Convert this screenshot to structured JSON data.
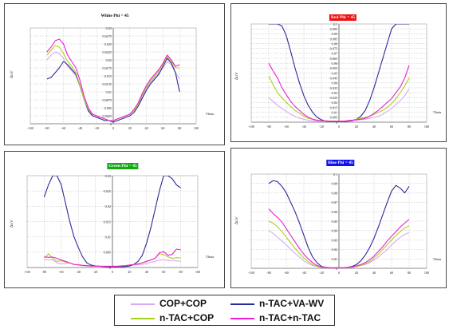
{
  "colors": {
    "COP+COP": "#d9a8f2",
    "n-TAC+VA-WV": "#2b2b96",
    "n-TAC+COP": "#a8d21c",
    "n-TAC+n-TAC": "#ee1fd2"
  },
  "legend": {
    "items": [
      {
        "label": "COP+COP",
        "color": "#d9a8f2"
      },
      {
        "label": "n-TAC+VA-WV",
        "color": "#2b2b96"
      },
      {
        "label": "n-TAC+COP",
        "color": "#a8d21c"
      },
      {
        "label": "n-TAC+n-TAC",
        "color": "#ee1fd2"
      }
    ]
  },
  "chart_data": [
    {
      "type": "line",
      "title": "White Phi = 45",
      "title_bg": "#ffffff",
      "title_color": "#000000",
      "xlabel": "Theta",
      "ylabel": "Δu'v'",
      "xlim": [
        -100,
        100
      ],
      "ylim": [
        0,
        0.03
      ],
      "xticks": [
        "-100",
        "-80",
        "-60",
        "-40",
        "-20",
        "0",
        "20",
        "40",
        "60",
        "80",
        "100"
      ],
      "yticks": [
        "0",
        "0.0025",
        "0.005",
        "0.0075",
        "0.01",
        "0.0125",
        "0.015",
        "0.0175",
        "0.02",
        "0.0225",
        "0.025",
        "0.0275",
        "0.03"
      ],
      "grid": true,
      "x": [
        -80,
        -75,
        -70,
        -65,
        -60,
        -55,
        -50,
        -45,
        -40,
        -35,
        -30,
        -25,
        -20,
        -15,
        -10,
        -5,
        0,
        5,
        10,
        15,
        20,
        25,
        30,
        35,
        40,
        45,
        50,
        55,
        60,
        65,
        70,
        75,
        80
      ],
      "series": [
        {
          "name": "COP+COP",
          "values": [
            0.02,
            0.0215,
            0.0225,
            0.022,
            0.0205,
            0.018,
            0.0165,
            0.015,
            0.0115,
            0.0075,
            0.004,
            0.0025,
            0.002,
            0.002,
            0.0015,
            0.001,
            0.001,
            0.0015,
            0.002,
            0.0025,
            0.003,
            0.004,
            0.006,
            0.0085,
            0.011,
            0.013,
            0.0145,
            0.016,
            0.0175,
            0.0195,
            0.0185,
            0.016,
            0.014
          ]
        },
        {
          "name": "n-TAC+VA-WV",
          "values": [
            0.014,
            0.0145,
            0.016,
            0.0175,
            0.0195,
            0.0185,
            0.017,
            0.0155,
            0.012,
            0.0075,
            0.004,
            0.0025,
            0.002,
            0.0015,
            0.001,
            0.001,
            0.0005,
            0.001,
            0.0015,
            0.002,
            0.0025,
            0.0035,
            0.0055,
            0.008,
            0.0105,
            0.0125,
            0.014,
            0.0155,
            0.018,
            0.0205,
            0.019,
            0.016,
            0.01
          ]
        },
        {
          "name": "n-TAC+COP",
          "values": [
            0.0215,
            0.023,
            0.0245,
            0.024,
            0.022,
            0.0195,
            0.018,
            0.016,
            0.012,
            0.0075,
            0.0045,
            0.003,
            0.0025,
            0.002,
            0.0015,
            0.001,
            0.001,
            0.0015,
            0.002,
            0.0025,
            0.003,
            0.004,
            0.006,
            0.009,
            0.0115,
            0.0135,
            0.015,
            0.0165,
            0.0185,
            0.021,
            0.0195,
            0.0175,
            0.0175
          ]
        },
        {
          "name": "n-TAC+n-TAC",
          "values": [
            0.0225,
            0.024,
            0.026,
            0.0265,
            0.025,
            0.0215,
            0.0195,
            0.0175,
            0.0135,
            0.0085,
            0.005,
            0.003,
            0.0025,
            0.002,
            0.0015,
            0.001,
            0.001,
            0.0015,
            0.002,
            0.0025,
            0.003,
            0.0045,
            0.0065,
            0.0095,
            0.012,
            0.014,
            0.0155,
            0.017,
            0.019,
            0.0215,
            0.02,
            0.018,
            0.0185
          ]
        }
      ]
    },
    {
      "type": "line",
      "title": "Red Phi = 45",
      "title_bg": "#ee1111",
      "title_color": "#ffffff",
      "xlabel": "Theta",
      "ylabel": "Δu'v'",
      "xlim": [
        -100,
        100
      ],
      "ylim": [
        0,
        0.1
      ],
      "xticks": [
        "-100",
        "-80",
        "-60",
        "-40",
        "-20",
        "0",
        "20",
        "40",
        "60",
        "80",
        "100"
      ],
      "yticks": [
        "0",
        "0.005",
        "0.01",
        "0.015",
        "0.02",
        "0.025",
        "0.03",
        "0.035",
        "0.04",
        "0.045",
        "0.05",
        "0.055",
        "0.06",
        "0.065",
        "0.07",
        "0.075",
        "0.08",
        "0.085",
        "0.09",
        "0.095",
        "0.1"
      ],
      "grid": true,
      "x": [
        -80,
        -75,
        -70,
        -65,
        -60,
        -55,
        -50,
        -45,
        -40,
        -35,
        -30,
        -25,
        -20,
        -15,
        -10,
        -5,
        0,
        5,
        10,
        15,
        20,
        25,
        30,
        35,
        40,
        45,
        50,
        55,
        60,
        65,
        70,
        75,
        80
      ],
      "series": [
        {
          "name": "COP+COP",
          "values": [
            0.025,
            0.021,
            0.017,
            0.014,
            0.011,
            0.008,
            0.006,
            0.004,
            0.003,
            0.002,
            0.0015,
            0.001,
            0.001,
            0.0015,
            0.001,
            0.001,
            0.001,
            0.001,
            0.0015,
            0.002,
            0.002,
            0.0025,
            0.003,
            0.004,
            0.005,
            0.006,
            0.008,
            0.011,
            0.014,
            0.018,
            0.022,
            0.027,
            0.034
          ]
        },
        {
          "name": "n-TAC+VA-WV",
          "values": [
            0.1,
            0.1,
            0.1,
            0.098,
            0.088,
            0.072,
            0.055,
            0.04,
            0.027,
            0.017,
            0.01,
            0.005,
            0.0025,
            0.001,
            0.0005,
            0.0005,
            0.0005,
            0.0005,
            0.001,
            0.0015,
            0.003,
            0.006,
            0.012,
            0.022,
            0.035,
            0.05,
            0.065,
            0.08,
            0.095,
            0.1,
            0.1,
            0.1,
            0.1
          ]
        },
        {
          "name": "n-TAC+COP",
          "values": [
            0.047,
            0.038,
            0.03,
            0.025,
            0.02,
            0.016,
            0.012,
            0.009,
            0.006,
            0.004,
            0.003,
            0.002,
            0.0015,
            0.0015,
            0.001,
            0.001,
            0.001,
            0.001,
            0.0015,
            0.002,
            0.003,
            0.004,
            0.005,
            0.006,
            0.008,
            0.01,
            0.012,
            0.015,
            0.019,
            0.024,
            0.03,
            0.037,
            0.045
          ]
        },
        {
          "name": "n-TAC+n-TAC",
          "values": [
            0.06,
            0.052,
            0.045,
            0.035,
            0.028,
            0.021,
            0.016,
            0.012,
            0.008,
            0.005,
            0.003,
            0.002,
            0.0015,
            0.001,
            0.001,
            0.001,
            0.001,
            0.001,
            0.0015,
            0.002,
            0.0025,
            0.003,
            0.004,
            0.006,
            0.009,
            0.012,
            0.016,
            0.02,
            0.024,
            0.03,
            0.036,
            0.045,
            0.058
          ]
        }
      ]
    },
    {
      "type": "line",
      "title": "Green Phi = 45",
      "title_bg": "#11aa11",
      "title_color": "#ffffff",
      "xlabel": "Theta",
      "ylabel": "Δu'v'",
      "xlim": [
        -100,
        100
      ],
      "ylim": [
        0,
        0.03
      ],
      "xticks": [
        "-100",
        "-80",
        "-60",
        "-40",
        "-20",
        "0",
        "20",
        "40",
        "60",
        "80",
        "100"
      ],
      "yticks": [
        "0",
        "0.005",
        "0.01",
        "0.015",
        "0.02",
        "0.025",
        "0.03"
      ],
      "grid": true,
      "x": [
        -80,
        -75,
        -70,
        -65,
        -60,
        -55,
        -50,
        -45,
        -40,
        -35,
        -30,
        -25,
        -20,
        -15,
        -10,
        -5,
        0,
        5,
        10,
        15,
        20,
        25,
        30,
        35,
        40,
        45,
        50,
        55,
        60,
        65,
        70,
        75,
        80
      ],
      "series": [
        {
          "name": "COP+COP",
          "values": [
            0.0025,
            0.0025,
            0.0025,
            0.0015,
            0.0012,
            0.0013,
            0.0015,
            0.001,
            0.0008,
            0.0006,
            0.0005,
            0.0004,
            0.0004,
            0.0004,
            0.0003,
            0.0003,
            0.0003,
            0.0003,
            0.0004,
            0.0005,
            0.0006,
            0.0008,
            0.0009,
            0.001,
            0.0013,
            0.0017,
            0.002,
            0.0025,
            0.0025,
            0.0023,
            0.0023,
            0.0022,
            0.002
          ]
        },
        {
          "name": "n-TAC+VA-WV",
          "values": [
            0.023,
            0.027,
            0.03,
            0.03,
            0.027,
            0.021,
            0.015,
            0.01,
            0.0065,
            0.0035,
            0.0015,
            0.0008,
            0.0005,
            0.0004,
            0.0003,
            0.0002,
            0.0002,
            0.0002,
            0.0002,
            0.0003,
            0.0005,
            0.001,
            0.002,
            0.004,
            0.008,
            0.013,
            0.019,
            0.025,
            0.03,
            0.03,
            0.029,
            0.027,
            0.026
          ]
        },
        {
          "name": "n-TAC+COP",
          "values": [
            0.003,
            0.0045,
            0.003,
            0.002,
            0.0022,
            0.0018,
            0.0015,
            0.001,
            0.0009,
            0.0007,
            0.0006,
            0.0005,
            0.0005,
            0.0004,
            0.0004,
            0.0004,
            0.0004,
            0.0004,
            0.0005,
            0.0006,
            0.0008,
            0.001,
            0.0012,
            0.0016,
            0.002,
            0.0025,
            0.003,
            0.0045,
            0.0042,
            0.0035,
            0.003,
            0.0032,
            0.0031
          ]
        },
        {
          "name": "n-TAC+n-TAC",
          "values": [
            0.0035,
            0.0033,
            0.0034,
            0.003,
            0.0025,
            0.002,
            0.0015,
            0.001,
            0.0009,
            0.0007,
            0.0006,
            0.0005,
            0.0005,
            0.0004,
            0.0004,
            0.0004,
            0.0004,
            0.0004,
            0.0005,
            0.0006,
            0.0008,
            0.001,
            0.0012,
            0.0015,
            0.002,
            0.0025,
            0.003,
            0.0048,
            0.0052,
            0.004,
            0.0043,
            0.006,
            0.0058
          ]
        }
      ]
    },
    {
      "type": "line",
      "title": "Blue Phi = 45",
      "title_bg": "#1111ee",
      "title_color": "#ffffff",
      "xlabel": "Theta",
      "ylabel": "Δu'v'",
      "xlim": [
        -100,
        100
      ],
      "ylim": [
        0,
        0.1
      ],
      "xticks": [
        "-100",
        "-80",
        "-60",
        "-40",
        "-20",
        "0",
        "20",
        "40",
        "60",
        "80",
        "100"
      ],
      "yticks": [
        "0",
        "0.01",
        "0.02",
        "0.03",
        "0.04",
        "0.05",
        "0.06",
        "0.07",
        "0.08",
        "0.09",
        "0.1"
      ],
      "grid": true,
      "x": [
        -80,
        -75,
        -70,
        -65,
        -60,
        -55,
        -50,
        -45,
        -40,
        -35,
        -30,
        -25,
        -20,
        -15,
        -10,
        -5,
        0,
        5,
        10,
        15,
        20,
        25,
        30,
        35,
        40,
        45,
        50,
        55,
        60,
        65,
        70,
        75,
        80
      ],
      "series": [
        {
          "name": "COP+COP",
          "values": [
            0.04,
            0.037,
            0.033,
            0.029,
            0.025,
            0.02,
            0.016,
            0.012,
            0.008,
            0.005,
            0.003,
            0.002,
            0.001,
            0.001,
            0.0005,
            0.0005,
            0.0005,
            0.0005,
            0.001,
            0.001,
            0.002,
            0.003,
            0.004,
            0.006,
            0.009,
            0.012,
            0.016,
            0.02,
            0.025,
            0.029,
            0.033,
            0.036,
            0.038
          ]
        },
        {
          "name": "n-TAC+VA-WV",
          "values": [
            0.09,
            0.093,
            0.092,
            0.087,
            0.08,
            0.07,
            0.06,
            0.048,
            0.035,
            0.022,
            0.012,
            0.006,
            0.002,
            0.001,
            0.0005,
            0.0005,
            0.0005,
            0.0005,
            0.001,
            0.002,
            0.004,
            0.008,
            0.014,
            0.022,
            0.032,
            0.044,
            0.057,
            0.07,
            0.082,
            0.088,
            0.085,
            0.08,
            0.087
          ]
        },
        {
          "name": "n-TAC+COP",
          "values": [
            0.05,
            0.048,
            0.044,
            0.039,
            0.033,
            0.027,
            0.021,
            0.016,
            0.011,
            0.007,
            0.004,
            0.002,
            0.001,
            0.001,
            0.0005,
            0.0005,
            0.0005,
            0.0005,
            0.001,
            0.001,
            0.002,
            0.003,
            0.005,
            0.007,
            0.011,
            0.015,
            0.02,
            0.025,
            0.03,
            0.035,
            0.039,
            0.043,
            0.045
          ]
        },
        {
          "name": "n-TAC+n-TAC",
          "values": [
            0.063,
            0.058,
            0.054,
            0.049,
            0.042,
            0.035,
            0.028,
            0.021,
            0.015,
            0.01,
            0.006,
            0.003,
            0.0015,
            0.001,
            0.0005,
            0.0005,
            0.0005,
            0.0005,
            0.001,
            0.0015,
            0.0025,
            0.004,
            0.006,
            0.009,
            0.013,
            0.018,
            0.023,
            0.029,
            0.034,
            0.039,
            0.044,
            0.048,
            0.052
          ]
        }
      ]
    }
  ]
}
